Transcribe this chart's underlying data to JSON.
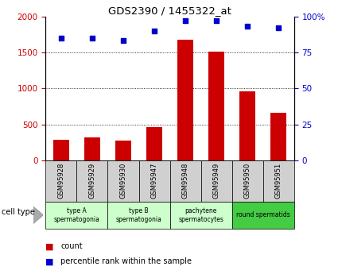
{
  "title": "GDS2390 / 1455322_at",
  "samples": [
    "GSM95928",
    "GSM95929",
    "GSM95930",
    "GSM95947",
    "GSM95948",
    "GSM95949",
    "GSM95950",
    "GSM95951"
  ],
  "counts": [
    290,
    320,
    275,
    460,
    1680,
    1510,
    960,
    660
  ],
  "percentile_ranks": [
    85,
    85,
    83,
    90,
    97,
    97,
    93,
    92
  ],
  "ylim_left": [
    0,
    2000
  ],
  "ylim_right": [
    0,
    100
  ],
  "yticks_left": [
    0,
    500,
    1000,
    1500,
    2000
  ],
  "yticks_right": [
    0,
    25,
    50,
    75,
    100
  ],
  "ytick_right_labels": [
    "0",
    "25",
    "50",
    "75",
    "100%"
  ],
  "bar_color": "#cc0000",
  "scatter_color": "#0000cc",
  "groups": [
    {
      "label": "type A\nspermatogonia",
      "start": 0,
      "end": 2,
      "color": "#ccffcc"
    },
    {
      "label": "type B\nspermatogonia",
      "start": 2,
      "end": 4,
      "color": "#ccffcc"
    },
    {
      "label": "pachytene\nspermatocytes",
      "start": 4,
      "end": 6,
      "color": "#ccffcc"
    },
    {
      "label": "round spermatids",
      "start": 6,
      "end": 8,
      "color": "#44cc44"
    }
  ],
  "sample_bg_color": "#d0d0d0",
  "legend_count_color": "#cc0000",
  "legend_percentile_color": "#0000cc",
  "cell_type_label": "cell type",
  "tick_color_left": "#cc0000",
  "tick_color_right": "#0000cc",
  "grid_yvals": [
    500,
    1000,
    1500
  ],
  "bar_width": 0.5
}
